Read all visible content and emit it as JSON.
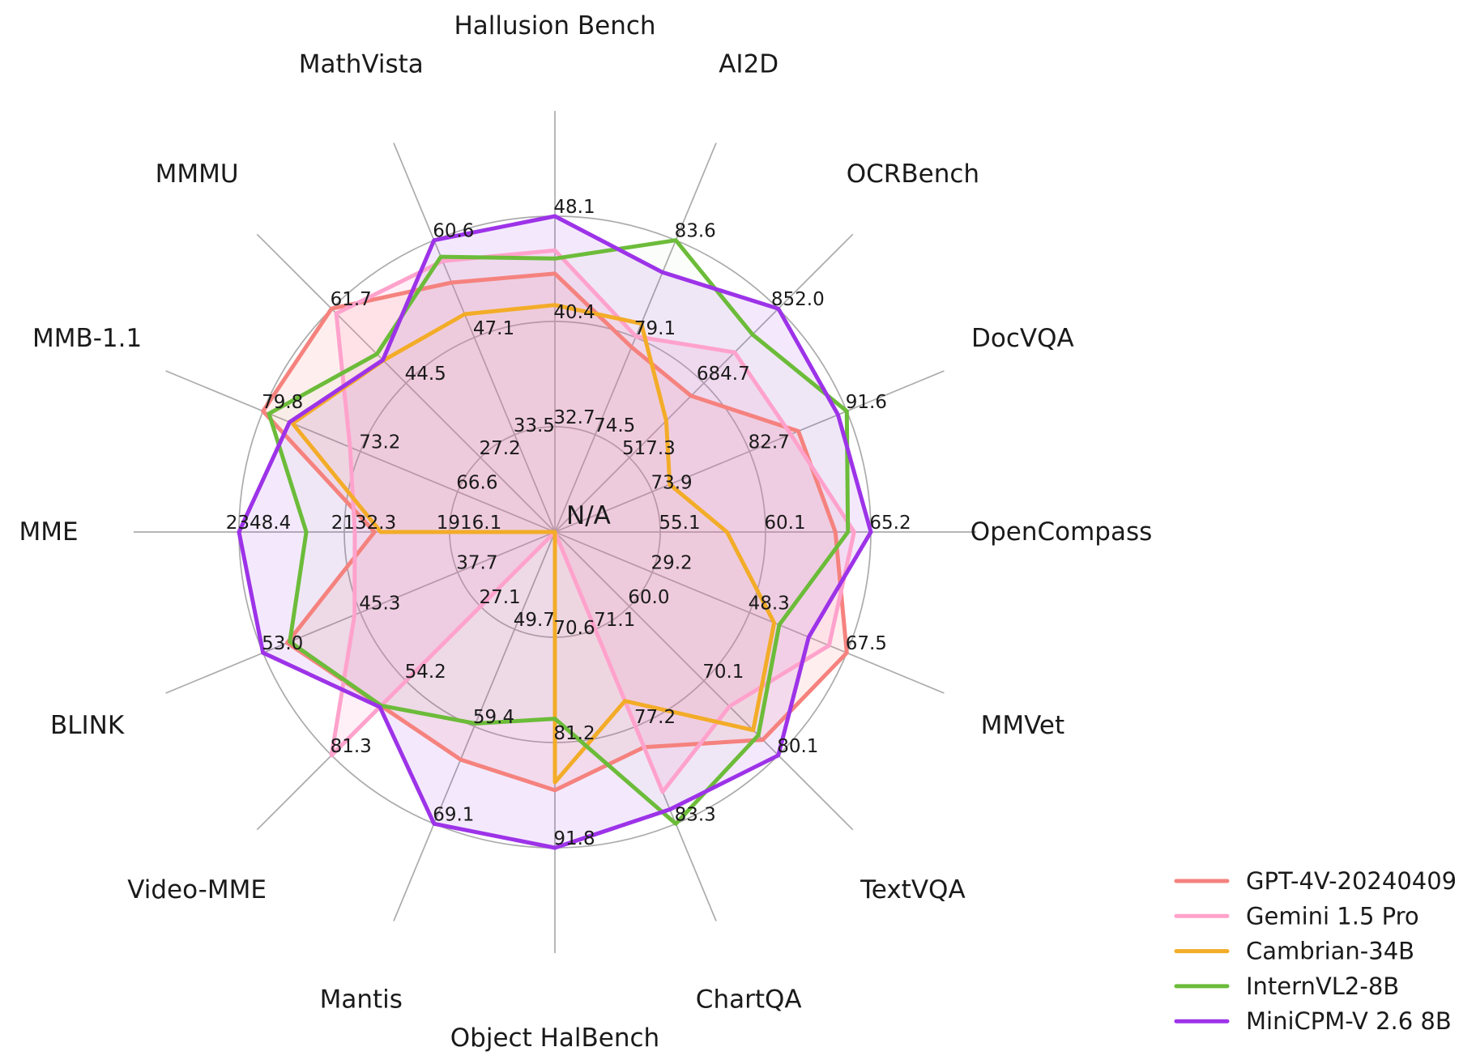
{
  "figure": {
    "kind": "benchmark-radar-figure",
    "center_label": "N/A"
  },
  "chart_data": {
    "type": "radar",
    "title": "",
    "center_label": "N/A",
    "grid": {
      "ring_levels": 3,
      "shape": "circle",
      "color": "#ABABAB",
      "background": "#ffffff",
      "legend_position": "bottom-right"
    },
    "axes": [
      {
        "label": "Hallusion Bench",
        "angle_deg": 90,
        "ticks": [
          32.7,
          40.4,
          48.1
        ]
      },
      {
        "label": "AI2D",
        "angle_deg": 67.5,
        "ticks": [
          74.5,
          79.1,
          83.6
        ]
      },
      {
        "label": "OCRBench",
        "angle_deg": 45,
        "ticks": [
          517.3,
          684.7,
          852.0
        ]
      },
      {
        "label": "DocVQA",
        "angle_deg": 22.5,
        "ticks": [
          73.9,
          82.7,
          91.6
        ]
      },
      {
        "label": "OpenCompass",
        "angle_deg": 0,
        "ticks": [
          55.1,
          60.1,
          65.2
        ]
      },
      {
        "label": "MMVet",
        "angle_deg": -22.5,
        "ticks": [
          29.2,
          48.3,
          67.5
        ]
      },
      {
        "label": "TextVQA",
        "angle_deg": -45,
        "ticks": [
          60.0,
          70.1,
          80.1
        ]
      },
      {
        "label": "ChartQA",
        "angle_deg": -67.5,
        "ticks": [
          71.1,
          77.2,
          83.3
        ]
      },
      {
        "label": "Object HalBench",
        "angle_deg": -90,
        "ticks": [
          70.6,
          81.2,
          91.8
        ]
      },
      {
        "label": "Mantis",
        "angle_deg": -112.5,
        "ticks": [
          49.7,
          59.4,
          69.1
        ]
      },
      {
        "label": "Video-MME",
        "angle_deg": -135,
        "ticks": [
          27.1,
          54.2,
          81.3
        ]
      },
      {
        "label": "BLINK",
        "angle_deg": -157.5,
        "ticks": [
          37.7,
          45.3,
          53.0
        ]
      },
      {
        "label": "MME",
        "angle_deg": 180,
        "ticks": [
          1916.1,
          2132.3,
          2348.4
        ]
      },
      {
        "label": "MMB-1.1",
        "angle_deg": 157.5,
        "ticks": [
          66.6,
          73.2,
          79.8
        ]
      },
      {
        "label": "MMMU",
        "angle_deg": 135,
        "ticks": [
          27.2,
          44.5,
          61.7
        ]
      },
      {
        "label": "MathVista",
        "angle_deg": 112.5,
        "ticks": [
          33.5,
          47.1,
          60.6
        ]
      }
    ],
    "series": [
      {
        "name": "GPT-4V-20240409",
        "color": "#F5827E",
        "fill_opacity": 0.13,
        "values": [
          43.9,
          78.6,
          656.0,
          87.2,
          63.5,
          67.5,
          78.0,
          78.5,
          86.0,
          62.7,
          63.3,
          51.1,
          2070.2,
          79.8,
          61.7,
          54.7
        ]
      },
      {
        "name": "Gemini 1.5 Pro",
        "color": "#FFA2CC",
        "fill_opacity": 0.16,
        "values": [
          45.6,
          79.1,
          754.0,
          86.5,
          64.4,
          64.0,
          73.5,
          81.3,
          "N/A",
          "N/A",
          81.3,
          45.8,
          2110.6,
          73.9,
          60.6,
          57.7
        ]
      },
      {
        "name": "Cambrian-34B",
        "color": "#F3AC28",
        "fill_opacity": 0.03,
        "values": [
          41.6,
          79.7,
          600.0,
          75.5,
          58.3,
          53.2,
          76.7,
          75.6,
          85.2,
          "N/A",
          "N/A",
          "N/A",
          2057.5,
          77.8,
          49.7,
          50.3
        ]
      },
      {
        "name": "InternVL2-8B",
        "color": "#6CBC3A",
        "fill_opacity": 0.03,
        "values": [
          45.0,
          83.6,
          794.0,
          91.6,
          64.1,
          54.2,
          77.4,
          83.3,
          78.8,
          59.1,
          63.2,
          50.9,
          2210.3,
          79.4,
          51.2,
          58.3
        ]
      },
      {
        "name": "MiniCPM-V 2.6 8B",
        "color": "#9D33E8",
        "fill_opacity": 0.11,
        "values": [
          48.1,
          82.1,
          852.0,
          90.8,
          65.2,
          60.0,
          80.1,
          82.4,
          91.8,
          69.1,
          63.7,
          53.0,
          2348.4,
          78.0,
          49.8,
          60.6
        ]
      }
    ]
  }
}
